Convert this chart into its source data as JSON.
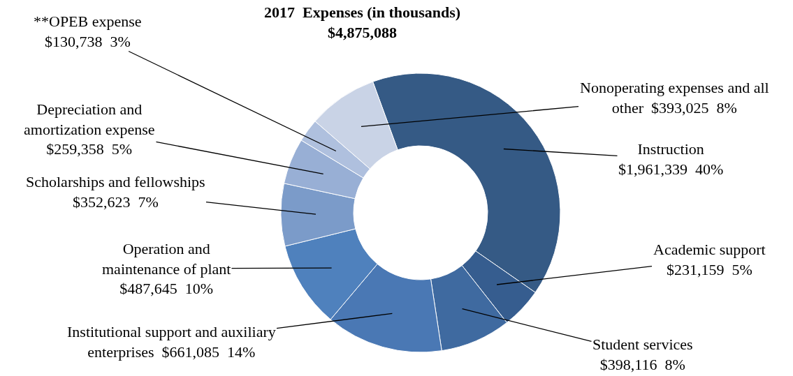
{
  "chart_data": {
    "type": "donut",
    "title": "2017  Expenses (in thousands)",
    "subtitle": "$4,875,088",
    "categories": [
      "Instruction",
      "Academic support",
      "Student services",
      "Institutional support and auxiliary enterprises",
      "Operation and maintenance of plant",
      "Scholarships and fellowships",
      "Depreciation and amortization expense",
      "**OPEB expense",
      "Nonoperating expenses and all other"
    ],
    "values": [
      1961339,
      231159,
      398116,
      661085,
      487645,
      352623,
      259358,
      130738,
      393025
    ],
    "value_labels": [
      "$1,961,339  40%",
      "$231,159  5%",
      "$398,116  8%",
      "$661,085  14%",
      "$487,645  10%",
      "$352,623  7%",
      "$259,358  5%",
      "$130,738  3%",
      "$393,025  8%"
    ],
    "colors": [
      "#355a85",
      "#365d8f",
      "#3f6aa0",
      "#4a78b4",
      "#4f81bd",
      "#7b9bc9",
      "#98afd5",
      "#afc0de",
      "#c9d3e6"
    ],
    "legend": false
  }
}
